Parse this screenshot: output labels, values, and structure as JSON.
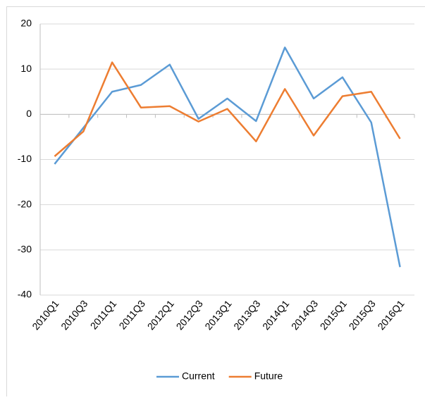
{
  "chart_data": {
    "type": "line",
    "categories": [
      "2010Q1",
      "2010Q3",
      "2011Q1",
      "2011Q3",
      "2012Q1",
      "2012Q3",
      "2013Q1",
      "2013Q3",
      "2014Q1",
      "2014Q3",
      "2015Q1",
      "2015Q3",
      "2016Q1"
    ],
    "series": [
      {
        "name": "Current",
        "color": "#5b9bd5",
        "values": [
          -11,
          -3,
          5,
          6.5,
          11,
          -1,
          3.5,
          -1.5,
          14.8,
          3.5,
          8.2,
          -1.8,
          -33.8
        ]
      },
      {
        "name": "Future",
        "color": "#ed7d31",
        "values": [
          -9.3,
          -3.8,
          11.5,
          1.5,
          1.8,
          -1.6,
          1.2,
          -6,
          5.6,
          -4.7,
          4,
          5,
          -5.4
        ]
      }
    ],
    "ylim": [
      -40,
      20
    ],
    "yticks": [
      -40,
      -30,
      -20,
      -10,
      0,
      10,
      20
    ],
    "grid": true,
    "legend": "bottom"
  }
}
